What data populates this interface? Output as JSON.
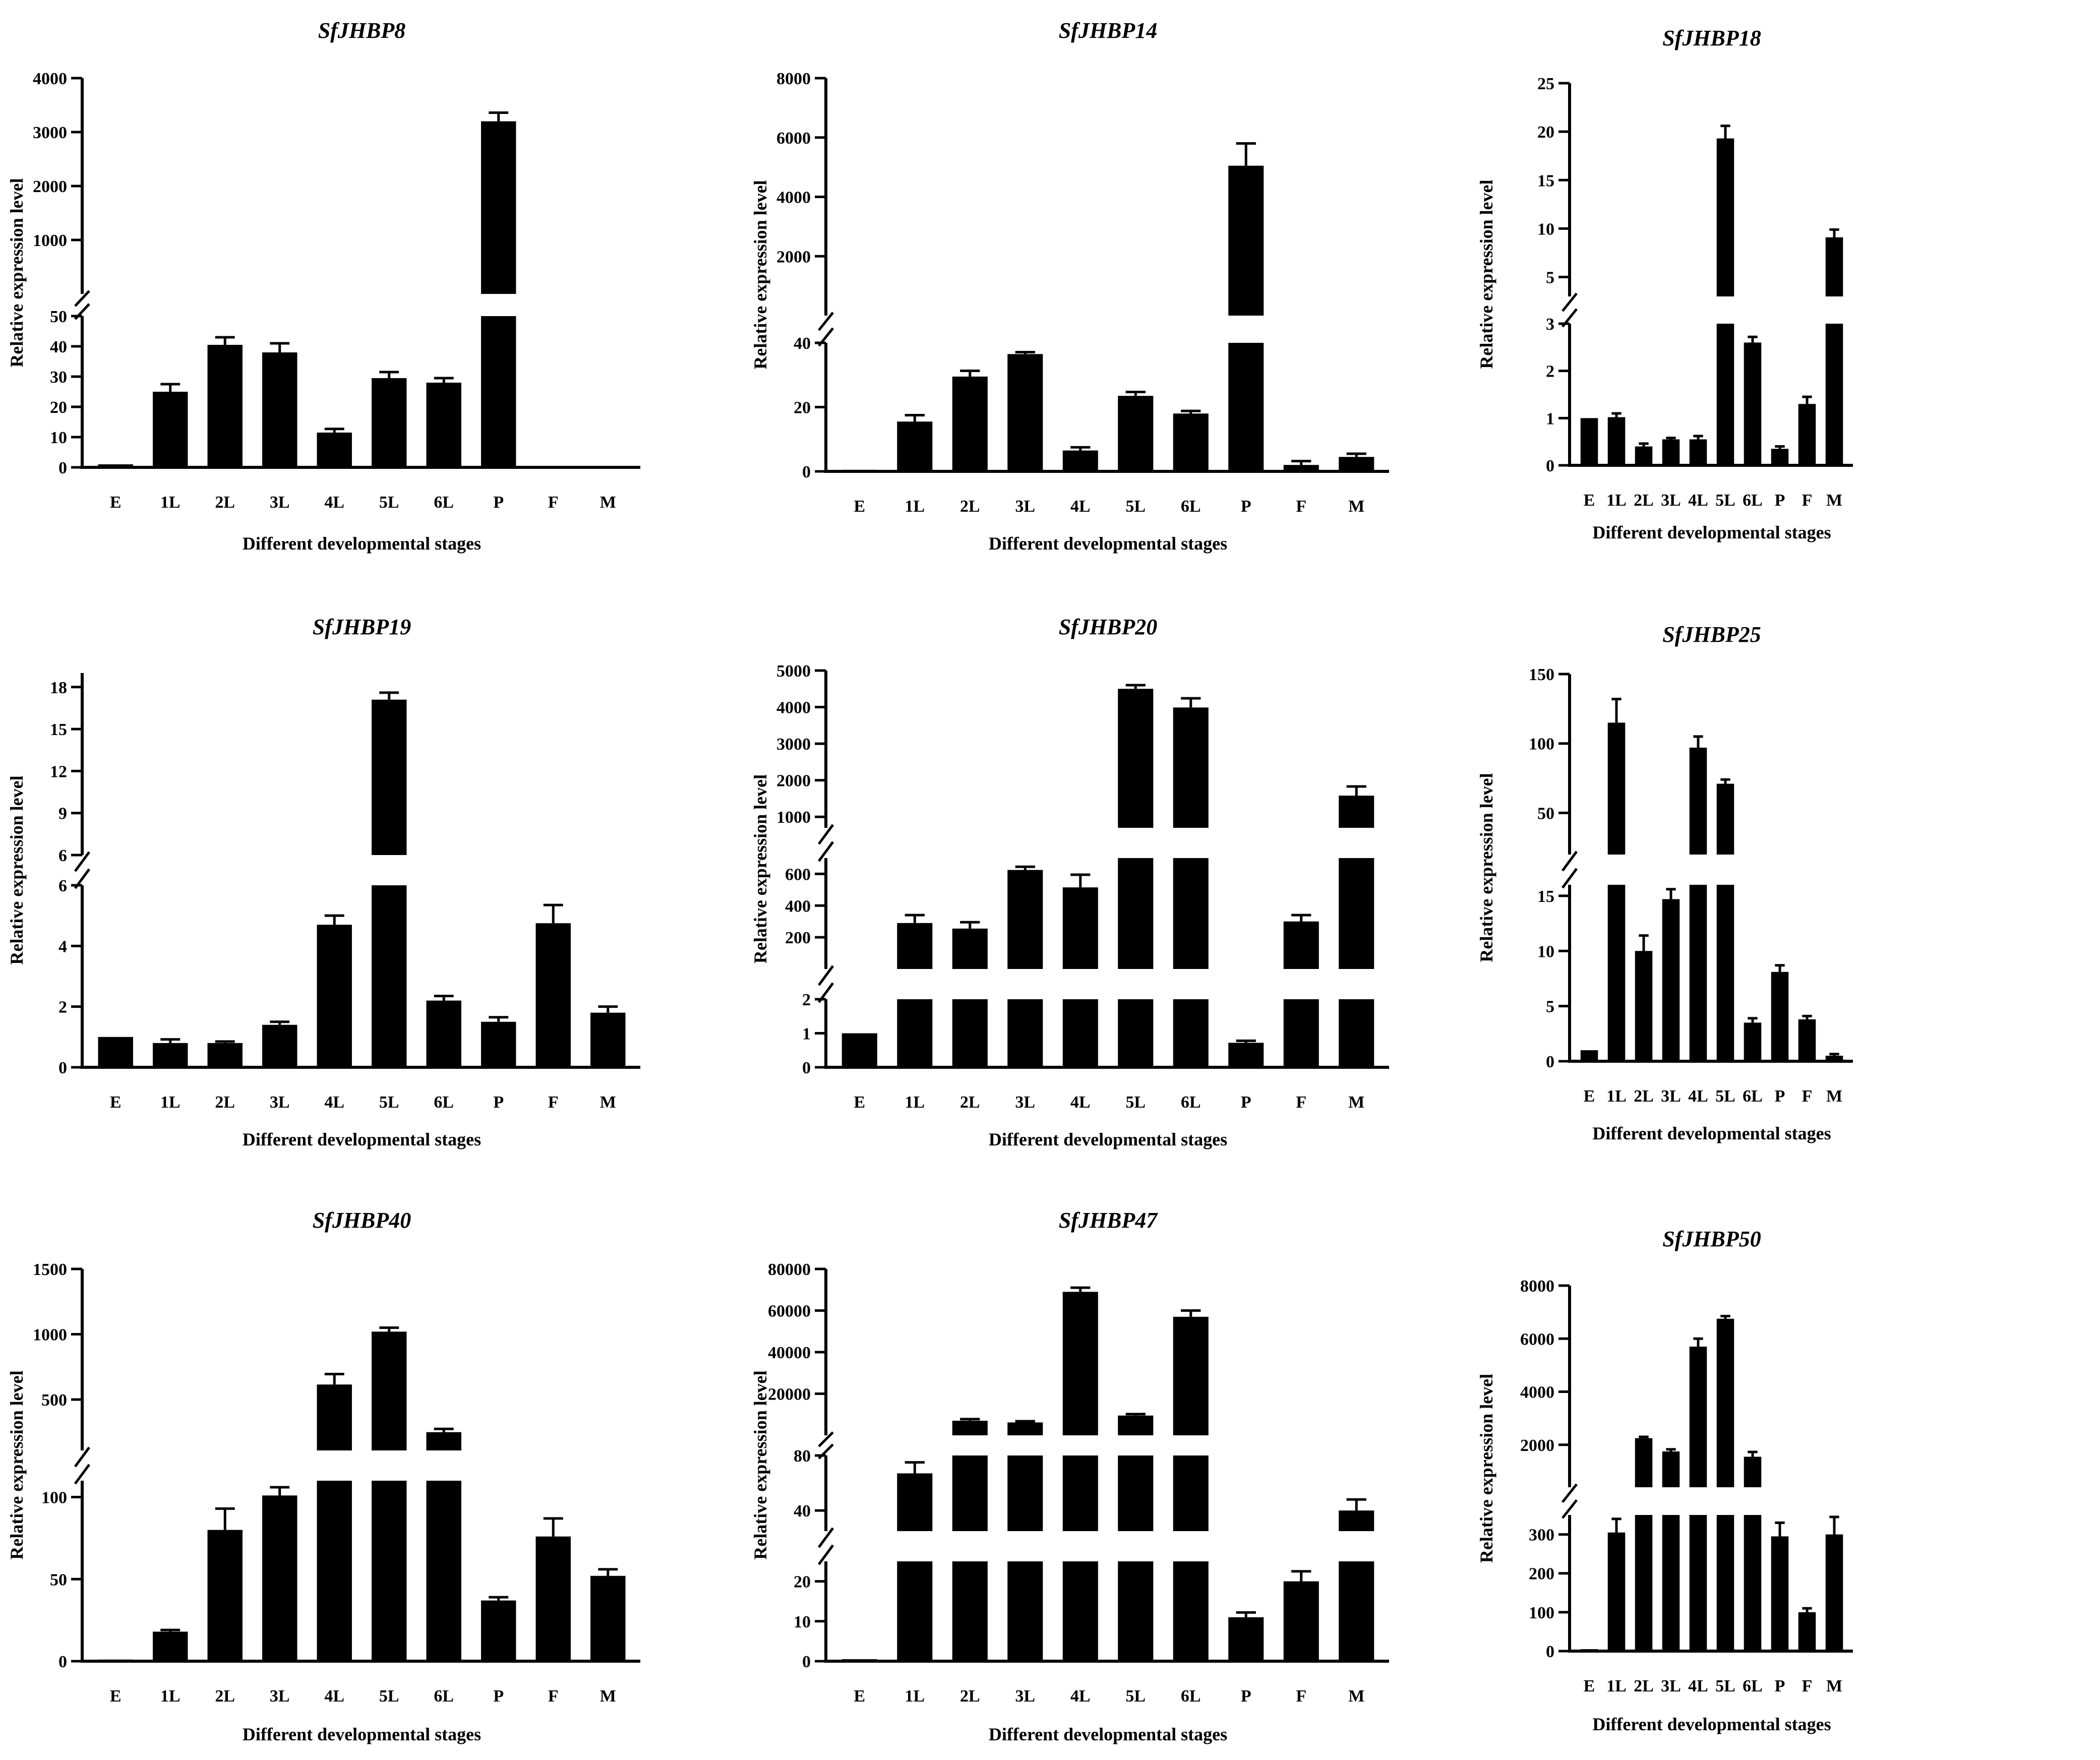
{
  "figure": {
    "categories": [
      "E",
      "1L",
      "2L",
      "3L",
      "4L",
      "5L",
      "6L",
      "P",
      "F",
      "M"
    ],
    "xlabel": "Different developmental stages",
    "ylabel": "Relative expression level"
  },
  "chart_data": [
    {
      "type": "bar",
      "title": "SfJHBP8",
      "categories": [
        "E",
        "1L",
        "2L",
        "3L",
        "4L",
        "5L",
        "6L",
        "P",
        "F",
        "M"
      ],
      "values": [
        1,
        25,
        40.5,
        38,
        11.5,
        29.5,
        28,
        3200,
        0.2,
        0.2
      ],
      "errors": [
        0,
        2.5,
        2.5,
        3,
        1.2,
        2,
        1.5,
        160,
        0,
        0
      ],
      "xlabel": "Different developmental stages",
      "ylabel": "Relative expression level",
      "segments": [
        {
          "range": [
            0,
            50
          ],
          "ticks": [
            0,
            10,
            20,
            30,
            40,
            50
          ]
        },
        {
          "range": [
            0,
            4000
          ],
          "ticks": [
            1000,
            2000,
            3000,
            4000
          ]
        }
      ]
    },
    {
      "type": "bar",
      "title": "SfJHBP14",
      "categories": [
        "E",
        "1L",
        "2L",
        "3L",
        "4L",
        "5L",
        "6L",
        "P",
        "F",
        "M"
      ],
      "values": [
        0.5,
        15.5,
        29.5,
        36.5,
        6.5,
        23.5,
        18,
        5050,
        2,
        4.5
      ],
      "errors": [
        0,
        2,
        1.8,
        0.6,
        1,
        1.2,
        0.8,
        750,
        1.2,
        1
      ],
      "xlabel": "Different developmental stages",
      "ylabel": "Relative expression level",
      "segments": [
        {
          "range": [
            0,
            40
          ],
          "ticks": [
            0,
            20,
            40
          ]
        },
        {
          "range": [
            0,
            8000
          ],
          "ticks": [
            2000,
            4000,
            6000,
            8000
          ]
        }
      ]
    },
    {
      "type": "bar",
      "title": "SfJHBP18",
      "categories": [
        "E",
        "1L",
        "2L",
        "3L",
        "4L",
        "5L",
        "6L",
        "P",
        "F",
        "M"
      ],
      "values": [
        1,
        1.02,
        0.4,
        0.55,
        0.55,
        19.3,
        2.6,
        0.35,
        1.3,
        9.1
      ],
      "errors": [
        0,
        0.08,
        0.06,
        0.03,
        0.07,
        1.3,
        0.12,
        0.05,
        0.15,
        0.8
      ],
      "xlabel": "Different developmental stages",
      "ylabel": "Relative expression level",
      "segments": [
        {
          "range": [
            0,
            3
          ],
          "ticks": [
            0,
            1,
            2,
            3
          ]
        },
        {
          "range": [
            3,
            25
          ],
          "ticks": [
            5,
            10,
            15,
            20,
            25
          ]
        }
      ]
    },
    {
      "type": "bar",
      "title": "SfJHBP19",
      "categories": [
        "E",
        "1L",
        "2L",
        "3L",
        "4L",
        "5L",
        "6L",
        "P",
        "F",
        "M"
      ],
      "values": [
        1,
        0.8,
        0.8,
        1.4,
        4.7,
        17.1,
        2.2,
        1.5,
        4.75,
        1.8
      ],
      "errors": [
        0,
        0.12,
        0.05,
        0.1,
        0.3,
        0.5,
        0.15,
        0.15,
        0.6,
        0.2
      ],
      "xlabel": "Different developmental stages",
      "ylabel": "Relative expression level",
      "segments": [
        {
          "range": [
            0,
            6
          ],
          "ticks": [
            0,
            2,
            4,
            6
          ]
        },
        {
          "range": [
            6,
            19
          ],
          "ticks": [
            6,
            9,
            12,
            15,
            18
          ]
        }
      ]
    },
    {
      "type": "bar",
      "title": "SfJHBP20",
      "categories": [
        "E",
        "1L",
        "2L",
        "3L",
        "4L",
        "5L",
        "6L",
        "P",
        "F",
        "M"
      ],
      "values": [
        1,
        290,
        255,
        625,
        515,
        4500,
        3990,
        0.72,
        300,
        1580
      ],
      "errors": [
        0,
        50,
        40,
        20,
        80,
        100,
        250,
        0.06,
        40,
        250
      ],
      "xlabel": "Different developmental stages",
      "ylabel": "Relative expression level",
      "segments": [
        {
          "range": [
            0,
            2
          ],
          "ticks": [
            0,
            1,
            2
          ]
        },
        {
          "range": [
            0,
            700
          ],
          "ticks": [
            200,
            400,
            600
          ]
        },
        {
          "range": [
            700,
            5000
          ],
          "ticks": [
            1000,
            2000,
            3000,
            4000,
            5000
          ]
        }
      ]
    },
    {
      "type": "bar",
      "title": "SfJHBP25",
      "categories": [
        "E",
        "1L",
        "2L",
        "3L",
        "4L",
        "5L",
        "6L",
        "P",
        "F",
        "M"
      ],
      "values": [
        1,
        115,
        10,
        14.7,
        97,
        71,
        3.5,
        8.1,
        3.8,
        0.5
      ],
      "errors": [
        0,
        17,
        1.4,
        0.9,
        8,
        3,
        0.4,
        0.6,
        0.3,
        0.15
      ],
      "xlabel": "Different developmental stages",
      "ylabel": "Relative expression level",
      "segments": [
        {
          "range": [
            0,
            16
          ],
          "ticks": [
            0,
            5,
            10,
            15
          ]
        },
        {
          "range": [
            20,
            150
          ],
          "ticks": [
            50,
            100,
            150
          ]
        }
      ]
    },
    {
      "type": "bar",
      "title": "SfJHBP40",
      "categories": [
        "E",
        "1L",
        "2L",
        "3L",
        "4L",
        "5L",
        "6L",
        "P",
        "F",
        "M"
      ],
      "values": [
        1,
        18,
        80,
        101,
        615,
        1020,
        250,
        37,
        76,
        52
      ],
      "errors": [
        0,
        1,
        13,
        5,
        80,
        30,
        25,
        2,
        11,
        4
      ],
      "xlabel": "Different developmental stages",
      "ylabel": "Relative expression level",
      "segments": [
        {
          "range": [
            0,
            110
          ],
          "ticks": [
            0,
            50,
            100
          ]
        },
        {
          "range": [
            110,
            1500
          ],
          "ticks": [
            500,
            1000,
            1500
          ]
        }
      ]
    },
    {
      "type": "bar",
      "title": "SfJHBP47",
      "categories": [
        "E",
        "1L",
        "2L",
        "3L",
        "4L",
        "5L",
        "6L",
        "P",
        "F",
        "M"
      ],
      "values": [
        0.5,
        67,
        7000,
        6200,
        69000,
        9500,
        57000,
        11,
        20,
        40
      ],
      "errors": [
        0,
        8,
        800,
        600,
        2000,
        700,
        3000,
        1.2,
        2.5,
        8
      ],
      "xlabel": "Different developmental stages",
      "ylabel": "Relative expression level",
      "segments": [
        {
          "range": [
            0,
            25
          ],
          "ticks": [
            0,
            10,
            20
          ]
        },
        {
          "range": [
            25,
            80
          ],
          "ticks": [
            40,
            80
          ]
        },
        {
          "range": [
            0,
            80000
          ],
          "ticks": [
            20000,
            40000,
            60000,
            80000
          ]
        }
      ]
    },
    {
      "type": "bar",
      "title": "SfJHBP50",
      "categories": [
        "E",
        "1L",
        "2L",
        "3L",
        "4L",
        "5L",
        "6L",
        "P",
        "F",
        "M"
      ],
      "values": [
        5,
        305,
        2250,
        1750,
        5700,
        6750,
        1550,
        295,
        100,
        300
      ],
      "errors": [
        0,
        35,
        50,
        80,
        300,
        100,
        180,
        35,
        10,
        45
      ],
      "xlabel": "Different developmental stages",
      "ylabel": "Relative expression level",
      "segments": [
        {
          "range": [
            0,
            350
          ],
          "ticks": [
            0,
            100,
            200,
            300
          ]
        },
        {
          "range": [
            400,
            8000
          ],
          "ticks": [
            2000,
            4000,
            6000,
            8000
          ]
        }
      ]
    }
  ]
}
